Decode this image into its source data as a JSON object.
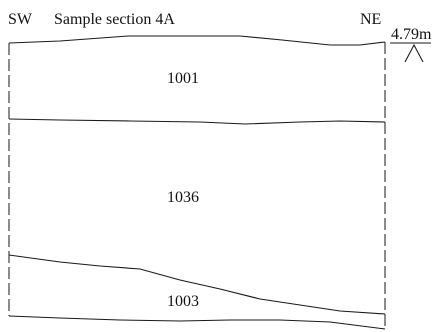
{
  "section": {
    "title": "Sample section 4A",
    "orientation_left": "SW",
    "orientation_right": "NE",
    "datum_level": "4.79m",
    "layers": [
      {
        "context": "1001"
      },
      {
        "context": "1036"
      },
      {
        "context": "1003"
      }
    ]
  }
}
